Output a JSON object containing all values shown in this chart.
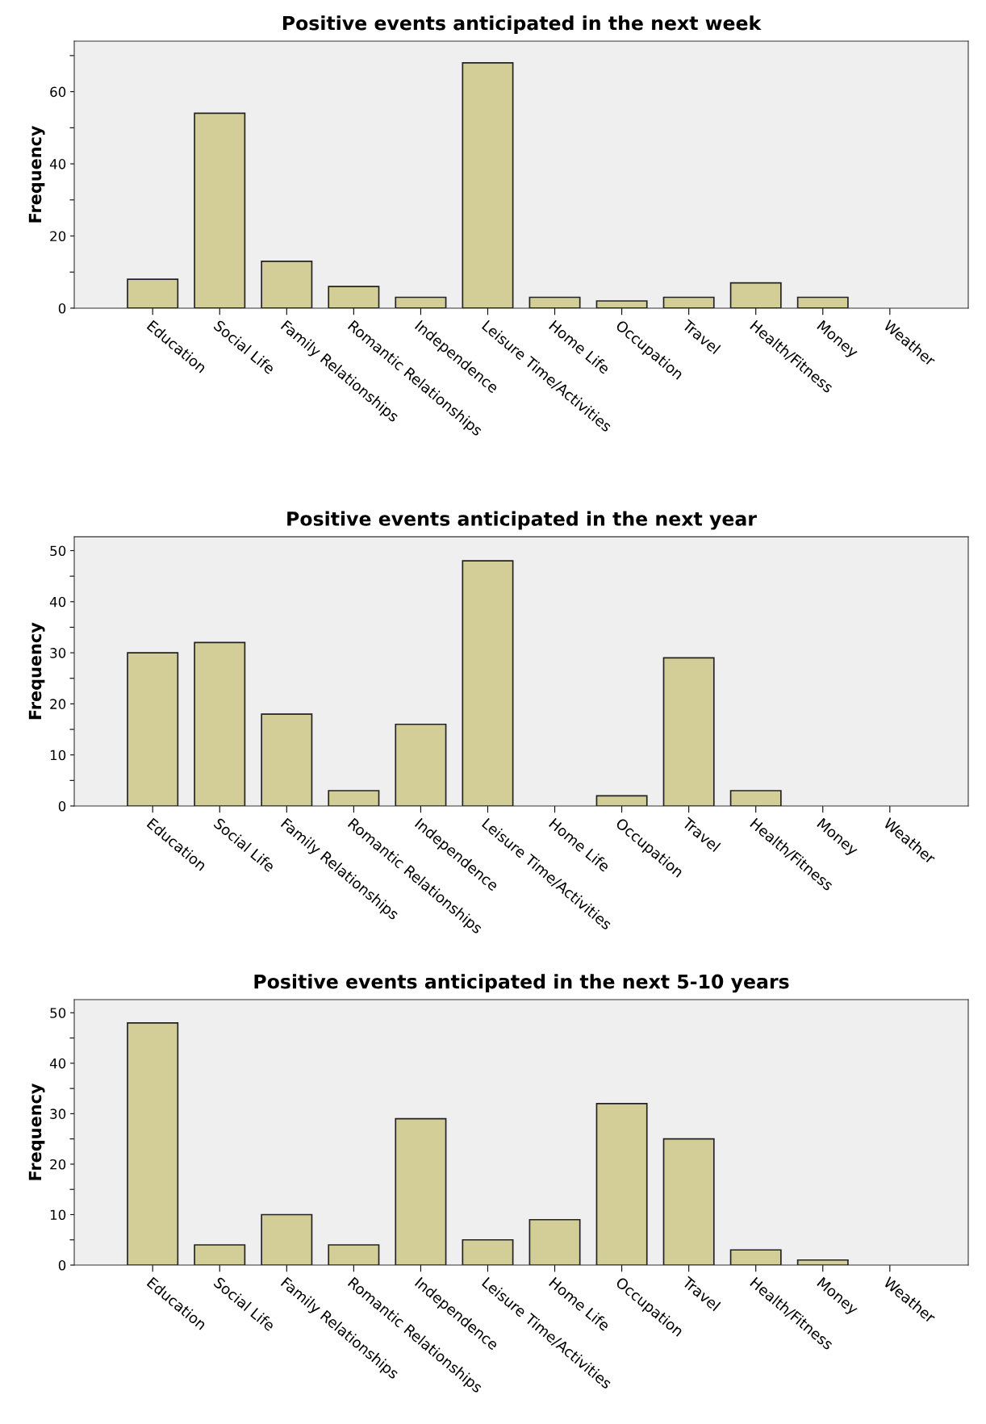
{
  "chart_data": [
    {
      "type": "bar",
      "title": "Positive events anticipated in the next week",
      "ylabel": "Frequency",
      "categories": [
        "Education",
        "Social Life",
        "Family Relationships",
        "Romantic Relationships",
        "Independence",
        "Leisure Time/Activities",
        "Home Life",
        "Occupation",
        "Travel",
        "Health/Fitness",
        "Money",
        "Weather"
      ],
      "values": [
        8,
        54,
        13,
        6,
        3,
        68,
        3,
        2,
        3,
        7,
        3,
        0
      ],
      "color": "#d3ce97",
      "ylim": [
        0,
        74
      ],
      "yticks": [
        0,
        {
          "value": 10,
          "label": null
        },
        20,
        {
          "value": 30,
          "label": null
        },
        40,
        {
          "value": 50,
          "label": null
        },
        60,
        {
          "value": 70,
          "label": null
        }
      ],
      "grid": false
    },
    {
      "type": "bar",
      "title": "Positive events anticipated in the next year",
      "ylabel": "Frequency",
      "categories": [
        "Education",
        "Social Life",
        "Family Relationships",
        "Romantic Relationships",
        "Independence",
        "Leisure Time/Activities",
        "Home Life",
        "Occupation",
        "Travel",
        "Health/Fitness",
        "Money",
        "Weather"
      ],
      "values": [
        30,
        32,
        18,
        3,
        16,
        48,
        0,
        2,
        29,
        3,
        0,
        0
      ],
      "color": "#d3ce97",
      "ylim": [
        0,
        52.7
      ],
      "yticks": [
        0,
        {
          "value": 5,
          "label": null
        },
        10,
        {
          "value": 15,
          "label": null
        },
        20,
        {
          "value": 25,
          "label": null
        },
        30,
        {
          "value": 35,
          "label": null
        },
        40,
        {
          "value": 45,
          "label": null
        },
        50
      ],
      "grid": false
    },
    {
      "type": "bar",
      "title": "Positive events anticipated in the next 5-10 years",
      "ylabel": "Frequency",
      "categories": [
        "Education",
        "Social Life",
        "Family Relationships",
        "Romantic Relationships",
        "Independence",
        "Leisure Time/Activities",
        "Home Life",
        "Occupation",
        "Travel",
        "Health/Fitness",
        "Money",
        "Weather"
      ],
      "values": [
        48,
        4,
        10,
        4,
        29,
        5,
        9,
        32,
        25,
        3,
        1,
        0
      ],
      "color": "#d3ce97",
      "ylim": [
        0,
        52.6
      ],
      "yticks": [
        0,
        {
          "value": 5,
          "label": null
        },
        10,
        {
          "value": 15,
          "label": null
        },
        20,
        {
          "value": 25,
          "label": null
        },
        30,
        {
          "value": 35,
          "label": null
        },
        40,
        {
          "value": 45,
          "label": null
        },
        50
      ],
      "grid": false
    }
  ]
}
